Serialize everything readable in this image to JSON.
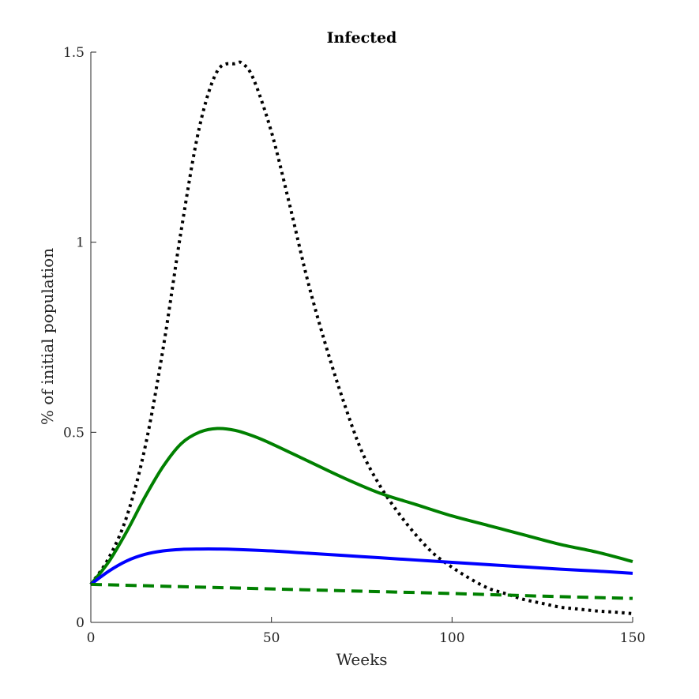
{
  "chart_data": {
    "type": "line",
    "title": "Infected",
    "xlabel": "Weeks",
    "ylabel": "% of initial population",
    "xlim": [
      0,
      150
    ],
    "ylim": [
      0,
      1.5
    ],
    "xticks": [
      0,
      50,
      100,
      150
    ],
    "xtick_labels": [
      "0",
      "50",
      "100",
      "150"
    ],
    "yticks": [
      0,
      0.5,
      1,
      1.5
    ],
    "ytick_labels": [
      "0",
      "0.5",
      "1",
      "1.5"
    ],
    "grid": false,
    "legend": "none",
    "series": [
      {
        "color": "#000000",
        "style": "dotted",
        "x": [
          0,
          5,
          10,
          15,
          20,
          25,
          30,
          35,
          40,
          42,
          45,
          50,
          55,
          60,
          65,
          70,
          75,
          80,
          85,
          90,
          95,
          100,
          105,
          110,
          115,
          120,
          125,
          130,
          135,
          140,
          145,
          150
        ],
        "y": [
          0.1,
          0.17,
          0.28,
          0.46,
          0.72,
          1.03,
          1.3,
          1.45,
          1.47,
          1.47,
          1.43,
          1.29,
          1.1,
          0.9,
          0.73,
          0.58,
          0.45,
          0.36,
          0.29,
          0.23,
          0.18,
          0.145,
          0.115,
          0.09,
          0.075,
          0.06,
          0.05,
          0.04,
          0.035,
          0.03,
          0.027,
          0.023
        ]
      },
      {
        "color": "#008000",
        "style": "solid",
        "x": [
          0,
          5,
          10,
          15,
          20,
          25,
          30,
          35,
          40,
          45,
          50,
          60,
          70,
          80,
          90,
          100,
          110,
          120,
          130,
          140,
          150
        ],
        "y": [
          0.1,
          0.16,
          0.24,
          0.33,
          0.41,
          0.47,
          0.5,
          0.51,
          0.505,
          0.49,
          0.47,
          0.425,
          0.38,
          0.34,
          0.31,
          0.28,
          0.255,
          0.23,
          0.205,
          0.185,
          0.16
        ]
      },
      {
        "color": "#0000ff",
        "style": "solid",
        "x": [
          0,
          5,
          10,
          15,
          20,
          25,
          30,
          35,
          40,
          50,
          60,
          70,
          80,
          90,
          100,
          110,
          120,
          130,
          140,
          150
        ],
        "y": [
          0.1,
          0.135,
          0.162,
          0.179,
          0.188,
          0.192,
          0.193,
          0.193,
          0.192,
          0.188,
          0.182,
          0.176,
          0.17,
          0.164,
          0.158,
          0.152,
          0.146,
          0.14,
          0.135,
          0.129
        ]
      },
      {
        "color": "#008000",
        "style": "dashed",
        "x": [
          0,
          25,
          50,
          75,
          100,
          125,
          150
        ],
        "y": [
          0.1,
          0.094,
          0.088,
          0.082,
          0.076,
          0.069,
          0.063
        ]
      }
    ]
  }
}
